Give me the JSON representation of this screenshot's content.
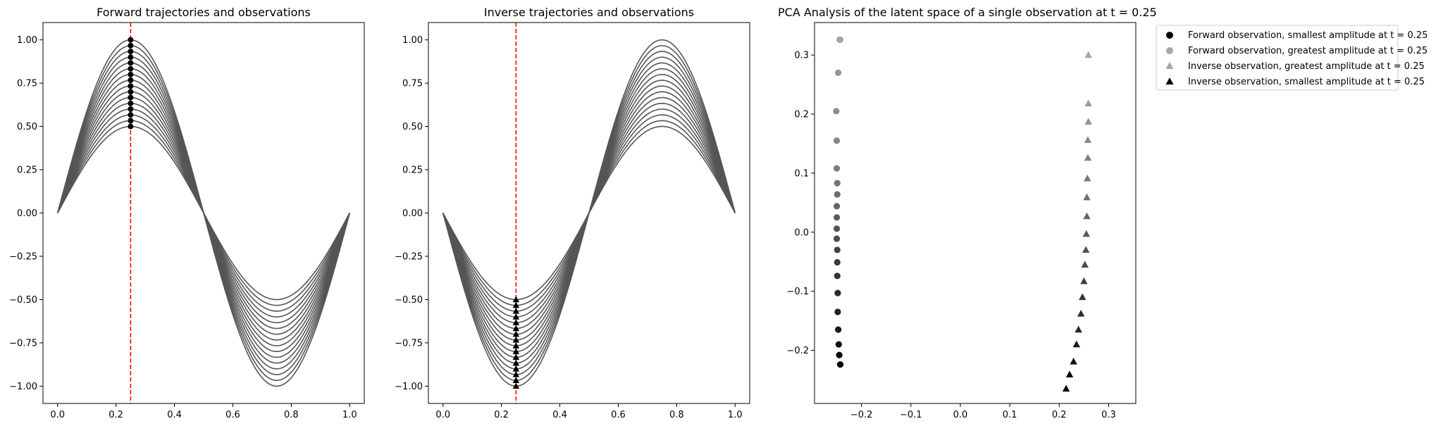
{
  "chart_data": [
    {
      "type": "line",
      "title": "Forward trajectories and observations",
      "xlabel": "",
      "ylabel": "",
      "xlim": [
        -0.05,
        1.05
      ],
      "ylim": [
        -1.1,
        1.1
      ],
      "xticks": [
        "0.0",
        "0.2",
        "0.4",
        "0.6",
        "0.8",
        "1.0"
      ],
      "yticks": [
        "-1.00",
        "-0.75",
        "-0.50",
        "-0.25",
        "0.00",
        "0.25",
        "0.50",
        "0.75",
        "1.00"
      ],
      "function": "y = A * sin(2*pi*x)",
      "amplitude_min": 0.5,
      "amplitude_max": 1.0,
      "n_trajectories": 16,
      "vline_x": 0.25,
      "vline_color": "#ff0000",
      "observations": {
        "x": 0.25,
        "y": [
          0.5,
          0.533,
          0.567,
          0.6,
          0.633,
          0.667,
          0.7,
          0.733,
          0.767,
          0.8,
          0.833,
          0.867,
          0.9,
          0.933,
          0.967,
          1.0
        ],
        "marker": "circle"
      }
    },
    {
      "type": "line",
      "title": "Inverse trajectories and observations",
      "xlabel": "",
      "ylabel": "",
      "xlim": [
        -0.05,
        1.05
      ],
      "ylim": [
        -1.1,
        1.1
      ],
      "xticks": [
        "0.0",
        "0.2",
        "0.4",
        "0.6",
        "0.8",
        "1.0"
      ],
      "yticks": [
        "-1.00",
        "-0.75",
        "-0.50",
        "-0.25",
        "0.00",
        "0.25",
        "0.50",
        "0.75",
        "1.00"
      ],
      "function": "y = -A * sin(2*pi*x)",
      "amplitude_min": 0.5,
      "amplitude_max": 1.0,
      "n_trajectories": 16,
      "vline_x": 0.25,
      "vline_color": "#ff0000",
      "observations": {
        "x": 0.25,
        "y": [
          -0.5,
          -0.533,
          -0.567,
          -0.6,
          -0.633,
          -0.667,
          -0.7,
          -0.733,
          -0.767,
          -0.8,
          -0.833,
          -0.867,
          -0.9,
          -0.933,
          -0.967,
          -1.0
        ],
        "marker": "triangle"
      }
    },
    {
      "type": "scatter",
      "title": "PCA Analysis of the latent space of a single observation at t = 0.25",
      "xlabel": "",
      "ylabel": "",
      "xlim": [
        -0.295,
        0.355
      ],
      "ylim": [
        -0.29,
        0.355
      ],
      "xticks": [
        "-0.2",
        "-0.1",
        "0.0",
        "0.1",
        "0.2",
        "0.3"
      ],
      "yticks": [
        "-0.2",
        "-0.1",
        "0.0",
        "0.1",
        "0.2",
        "0.3"
      ],
      "series": [
        {
          "name": "Forward observation",
          "marker": "circle",
          "x": [
            -0.243,
            -0.245,
            -0.246,
            -0.247,
            -0.248,
            -0.248,
            -0.249,
            -0.249,
            -0.249,
            -0.25,
            -0.25,
            -0.25,
            -0.25,
            -0.249,
            -0.249,
            -0.25,
            -0.25,
            -0.251,
            -0.247,
            -0.244,
            -0.243
          ],
          "y": [
            -0.224,
            -0.208,
            -0.19,
            -0.165,
            -0.135,
            -0.103,
            -0.074,
            -0.051,
            -0.03,
            -0.011,
            0.006,
            0.025,
            0.044,
            0.064,
            0.083,
            0.108,
            0.155,
            0.205,
            0.27,
            0.326,
            0.326
          ],
          "shade": [
            0.0,
            0.05,
            0.1,
            0.15,
            0.2,
            0.25,
            0.3,
            0.35,
            0.4,
            0.45,
            0.5,
            0.55,
            0.6,
            0.65,
            0.7,
            0.75,
            0.8,
            0.85,
            0.9,
            0.95,
            1.0
          ]
        },
        {
          "name": "Inverse observation",
          "marker": "triangle",
          "x": [
            0.214,
            0.221,
            0.229,
            0.235,
            0.239,
            0.244,
            0.247,
            0.25,
            0.252,
            0.254,
            0.255,
            0.256,
            0.256,
            0.257,
            0.258,
            0.258,
            0.259,
            0.259,
            0.259
          ],
          "y": [
            -0.265,
            -0.241,
            -0.219,
            -0.19,
            -0.165,
            -0.138,
            -0.11,
            -0.083,
            -0.055,
            -0.03,
            -0.003,
            0.027,
            0.059,
            0.091,
            0.126,
            0.156,
            0.187,
            0.218,
            0.3
          ],
          "shade": [
            0.0,
            0.055,
            0.11,
            0.165,
            0.22,
            0.275,
            0.33,
            0.385,
            0.44,
            0.495,
            0.55,
            0.605,
            0.66,
            0.715,
            0.77,
            0.825,
            0.88,
            0.935,
            1.0
          ]
        }
      ],
      "legend": {
        "placement": "outside-upper-right",
        "entries": [
          {
            "label": "Forward observation, smallest amplitude at t = 0.25",
            "marker": "circle",
            "color": "#000000"
          },
          {
            "label": "Forward observation, greatest amplitude at t = 0.25",
            "marker": "circle",
            "color": "#a6a6a6"
          },
          {
            "label": "Inverse observation, greatest amplitude at t = 0.25",
            "marker": "triangle",
            "color": "#a6a6a6"
          },
          {
            "label": "Inverse observation, smallest amplitude at t = 0.25",
            "marker": "triangle",
            "color": "#000000"
          }
        ]
      }
    }
  ],
  "colors": {
    "trajectory": "#555555",
    "vline": "#ff0000",
    "marker_dark": "#000000",
    "marker_light": "#a6a6a6"
  }
}
